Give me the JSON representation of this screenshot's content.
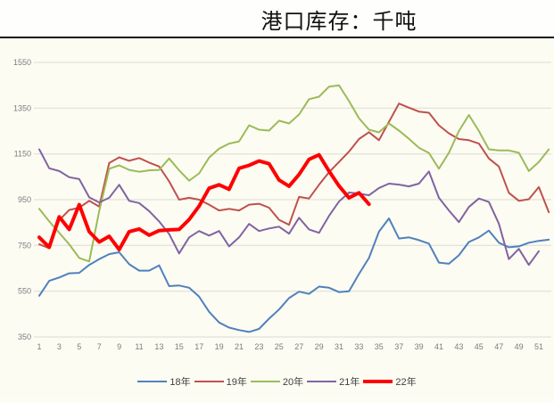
{
  "page": {
    "title": "港口库存：千吨",
    "unit": "千吨"
  },
  "chart_data": {
    "type": "line",
    "title": "港口库存：千吨",
    "xlabel": "",
    "ylabel": "",
    "ylim": [
      350,
      1550
    ],
    "xlim": [
      1,
      52
    ],
    "y_ticks": [
      350,
      550,
      750,
      950,
      1150,
      1350,
      1550
    ],
    "x_ticks": [
      1,
      3,
      5,
      7,
      9,
      11,
      13,
      15,
      17,
      19,
      21,
      23,
      25,
      27,
      29,
      31,
      33,
      35,
      37,
      39,
      41,
      43,
      45,
      47,
      49,
      51
    ],
    "grid": "horizontal",
    "gridline_color": "#dcdcd2",
    "legend_position": "bottom",
    "series": [
      {
        "name": "18年",
        "color": "#4F81BD",
        "width": 2,
        "values": [
          530,
          595,
          610,
          628,
          630,
          665,
          690,
          712,
          720,
          668,
          640,
          640,
          663,
          572,
          575,
          565,
          526,
          460,
          413,
          391,
          380,
          372,
          385,
          430,
          470,
          520,
          548,
          538,
          570,
          565,
          546,
          550,
          625,
          695,
          810,
          868,
          780,
          785,
          773,
          758,
          675,
          670,
          707,
          765,
          785,
          815,
          762,
          742,
          746,
          762,
          770,
          775
        ]
      },
      {
        "name": "19年",
        "color": "#C0504D",
        "width": 2,
        "values": [
          755,
          738,
          860,
          905,
          915,
          945,
          920,
          1110,
          1135,
          1120,
          1132,
          1112,
          1095,
          1030,
          950,
          958,
          950,
          928,
          903,
          910,
          903,
          928,
          932,
          915,
          862,
          840,
          962,
          955,
          1015,
          1070,
          1115,
          1160,
          1215,
          1245,
          1210,
          1290,
          1370,
          1352,
          1335,
          1330,
          1275,
          1240,
          1215,
          1210,
          1195,
          1130,
          1095,
          980,
          945,
          952,
          1005,
          895
        ]
      },
      {
        "name": "20年",
        "color": "#9BBB59",
        "width": 2,
        "values": [
          910,
          855,
          805,
          755,
          695,
          680,
          900,
          1085,
          1100,
          1080,
          1072,
          1078,
          1080,
          1130,
          1078,
          1033,
          1065,
          1134,
          1173,
          1195,
          1205,
          1275,
          1256,
          1252,
          1295,
          1283,
          1322,
          1389,
          1400,
          1444,
          1450,
          1381,
          1306,
          1256,
          1244,
          1283,
          1252,
          1216,
          1177,
          1154,
          1085,
          1155,
          1250,
          1320,
          1250,
          1170,
          1165,
          1165,
          1155,
          1075,
          1115,
          1170
        ]
      },
      {
        "name": "21年",
        "color": "#8064A2",
        "width": 2,
        "values": [
          1170,
          1087,
          1075,
          1048,
          1040,
          960,
          938,
          958,
          1015,
          945,
          935,
          900,
          855,
          800,
          715,
          785,
          813,
          793,
          813,
          746,
          785,
          844,
          813,
          824,
          832,
          801,
          871,
          820,
          805,
          879,
          942,
          981,
          977,
          969,
          1001,
          1020,
          1016,
          1008,
          1020,
          1073,
          958,
          903,
          852,
          918,
          955,
          940,
          845,
          690,
          735,
          665,
          725
        ]
      },
      {
        "name": "22年",
        "color": "#FF0000",
        "width": 4,
        "values": [
          785,
          742,
          875,
          820,
          928,
          810,
          765,
          790,
          732,
          810,
          822,
          795,
          815,
          818,
          820,
          863,
          922,
          1000,
          1015,
          995,
          1087,
          1100,
          1119,
          1107,
          1036,
          1009,
          1060,
          1126,
          1146,
          1075,
          1010,
          958,
          980,
          930
        ]
      }
    ]
  }
}
